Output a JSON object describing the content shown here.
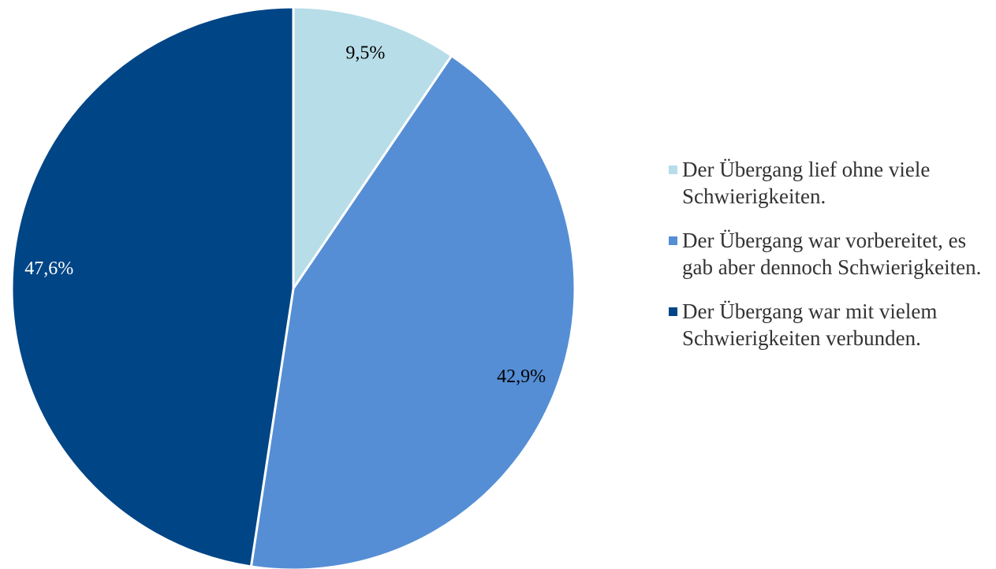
{
  "chart_data": {
    "type": "pie",
    "categories": [
      "Der Übergang lief ohne viele Schwierigkeiten.",
      "Der Übergang war vorbereitet, es gab aber dennoch Schwierigkeiten.",
      "Der Übergang war mit vielem Schwierigkeiten verbunden."
    ],
    "values": [
      9.5,
      42.9,
      47.6
    ],
    "value_labels": [
      "9,5%",
      "42,9%",
      "47,6%"
    ],
    "colors": [
      "#b7dde8",
      "#558ed5",
      "#004586"
    ],
    "value_label_colors": [
      "#000000",
      "#000000",
      "#ffffff"
    ],
    "legend": "right"
  }
}
